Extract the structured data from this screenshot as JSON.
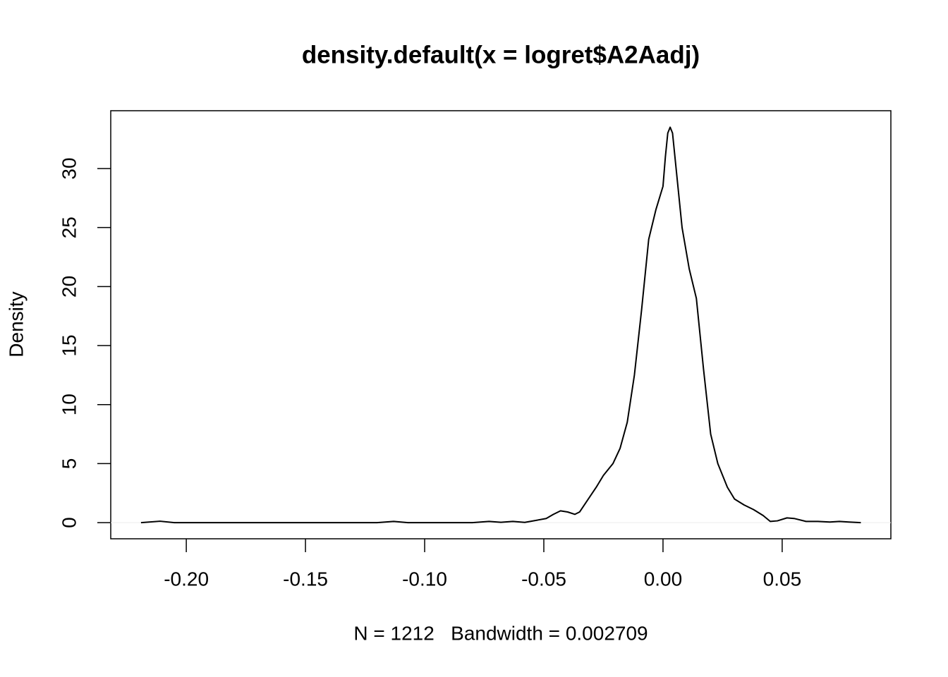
{
  "chart_data": {
    "type": "line",
    "title": "density.default(x = logret$A2Aadj)",
    "x_label": "N = 1212   Bandwidth = 0.002709",
    "y_label": "Density",
    "x": [
      -0.219,
      -0.211,
      -0.205,
      -0.12,
      -0.113,
      -0.107,
      -0.08,
      -0.073,
      -0.068,
      -0.063,
      -0.058,
      -0.053,
      -0.049,
      -0.046,
      -0.043,
      -0.04,
      -0.037,
      -0.035,
      -0.032,
      -0.028,
      -0.025,
      -0.021,
      -0.018,
      -0.015,
      -0.012,
      -0.009,
      -0.006,
      -0.003,
      0.0,
      0.001,
      0.002,
      0.003,
      0.004,
      0.006,
      0.008,
      0.011,
      0.014,
      0.017,
      0.02,
      0.023,
      0.027,
      0.03,
      0.034,
      0.038,
      0.042,
      0.045,
      0.048,
      0.052,
      0.055,
      0.06,
      0.065,
      0.07,
      0.074,
      0.078,
      0.083
    ],
    "values": [
      0,
      0.12,
      0,
      0,
      0.1,
      0,
      0,
      0.1,
      0.03,
      0.1,
      0.02,
      0.2,
      0.35,
      0.7,
      1.0,
      0.9,
      0.7,
      0.9,
      1.8,
      3.0,
      4.0,
      5.0,
      6.3,
      8.5,
      12.5,
      18,
      24,
      26.5,
      28.5,
      31,
      33,
      33.5,
      33,
      29,
      25,
      21.5,
      19,
      13,
      7.5,
      5,
      3,
      2,
      1.5,
      1.1,
      0.6,
      0.1,
      0.15,
      0.4,
      0.35,
      0.1,
      0.1,
      0.05,
      0.1,
      0.05,
      0
    ],
    "color": "#000000",
    "xlim": [
      -0.2317,
      0.0956
    ],
    "ylim": [
      -1.37,
      34.9
    ],
    "xticks": [
      {
        "value": -0.2,
        "label": "-0.20"
      },
      {
        "value": -0.15,
        "label": "-0.15"
      },
      {
        "value": -0.1,
        "label": "-0.10"
      },
      {
        "value": -0.05,
        "label": "-0.05"
      },
      {
        "value": 0,
        "label": "0.00"
      },
      {
        "value": 0.05,
        "label": "0.05"
      }
    ],
    "yticks": [
      0,
      5,
      10,
      15,
      20,
      25,
      30
    ]
  }
}
